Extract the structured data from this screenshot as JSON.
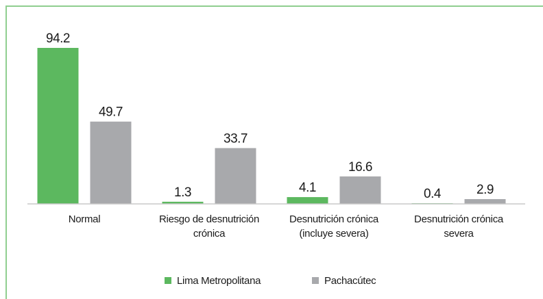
{
  "chart_data": {
    "type": "bar",
    "categories": [
      "Normal",
      "Riesgo de desnutrición crónica",
      "Desnutrición crónica (incluye severa)",
      "Desnutrición crónica severa"
    ],
    "series": [
      {
        "name": "Lima Metropolitana",
        "color": "#5cb85f",
        "values": [
          94.2,
          1.3,
          4.1,
          0.4
        ]
      },
      {
        "name": "Pachacútec",
        "color": "#a8a9ac",
        "values": [
          49.7,
          33.7,
          16.6,
          2.9
        ]
      }
    ],
    "legend": "bottom"
  }
}
